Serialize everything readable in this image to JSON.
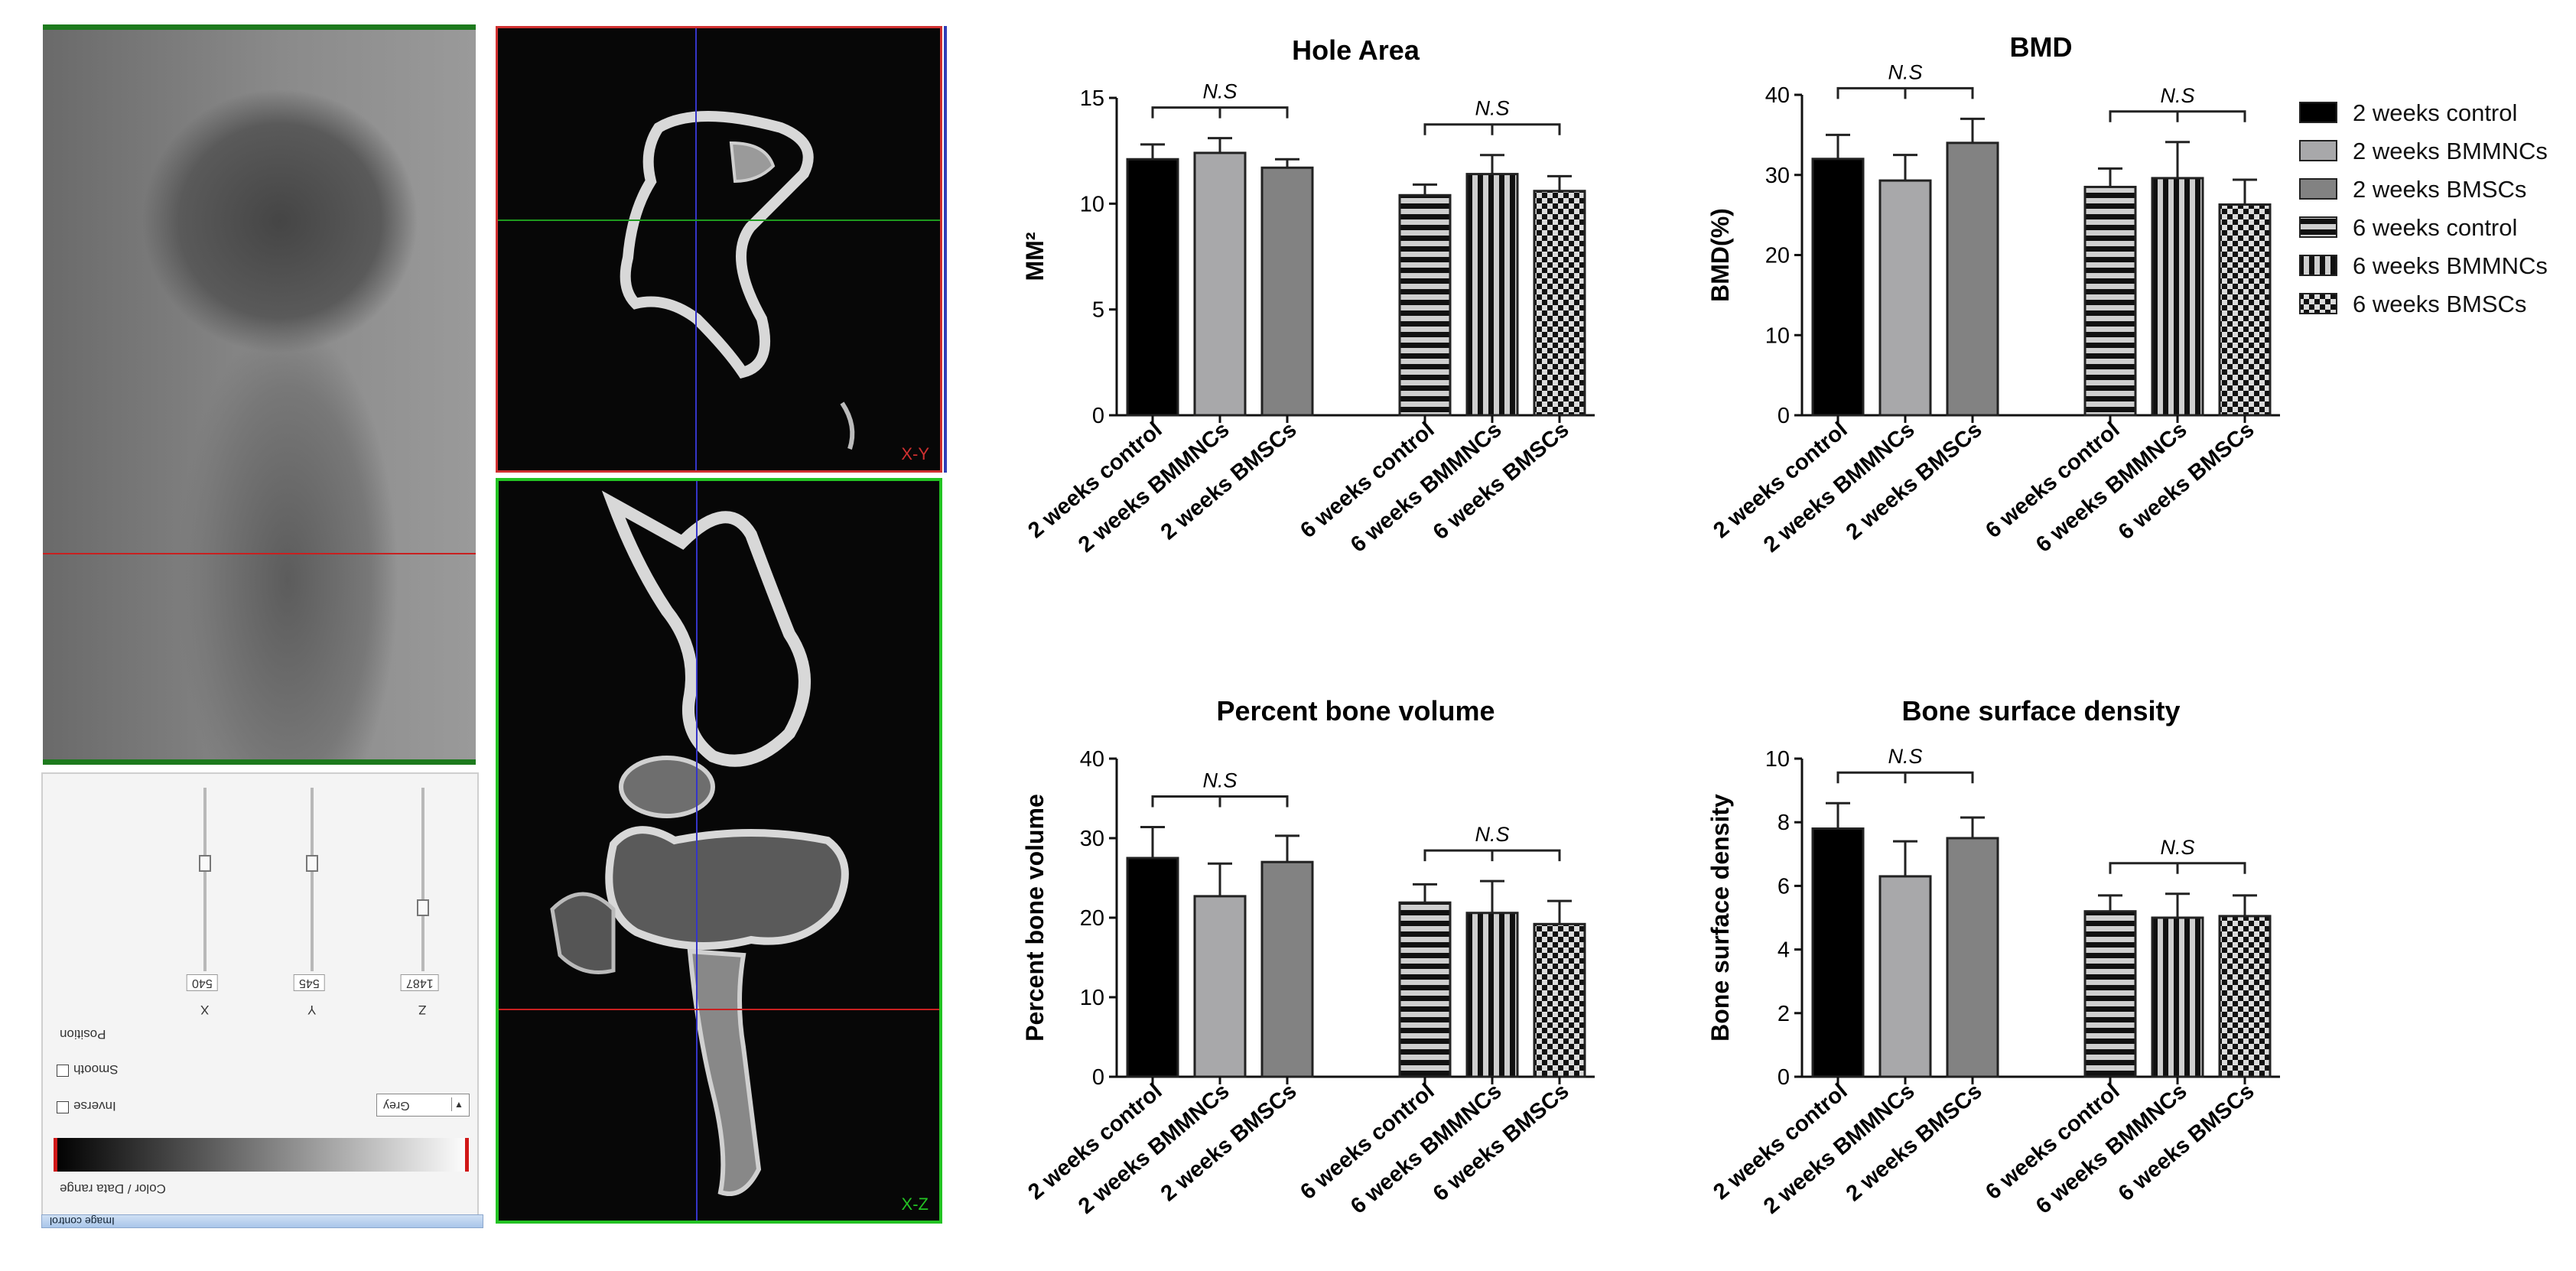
{
  "viewer": {
    "xy_label": "X-Y",
    "xz_label": "X-Z",
    "sliders": [
      {
        "axis": "X",
        "value": "540"
      },
      {
        "axis": "Y",
        "value": "545"
      },
      {
        "axis": "Z",
        "value": "1487"
      }
    ],
    "position_caption": "Position",
    "smooth_label": "Smooth",
    "inverse_label": "Inverse",
    "color_mode": "Grey",
    "color_range_caption": "Color / Data range",
    "image_control_caption": "Image control",
    "colors": {
      "xy_frame": "#d03030",
      "xz_frame": "#23c323",
      "crosshair_blue": "#3535c8",
      "crosshair_green": "#1e9a1e",
      "crosshair_red": "#c82020"
    }
  },
  "legend": [
    {
      "label": "2 weeks control",
      "pattern": "solid-black"
    },
    {
      "label": "2 weeks BMMNCs",
      "pattern": "solid-lightgray"
    },
    {
      "label": "2 weeks BMSCs",
      "pattern": "solid-gray"
    },
    {
      "label": "6 weeks control",
      "pattern": "horizontal-stripes"
    },
    {
      "label": "6 weeks BMMNCs",
      "pattern": "vertical-stripes"
    },
    {
      "label": "6 weeks BMSCs",
      "pattern": "checker"
    }
  ],
  "chart_data": [
    {
      "type": "bar",
      "title": "Hole Area",
      "ylabel": "MM²",
      "ylim": [
        0,
        15
      ],
      "yticks": [
        "0",
        "5",
        "10",
        "15"
      ],
      "categories": [
        "2 weeks control",
        "2 weeks BMMNCs",
        "2 weeks BMSCs",
        "6 weeks control",
        "6 weeks BMMNCs",
        "6 weeks BMSCs"
      ],
      "values": [
        12.1,
        12.4,
        11.7,
        10.4,
        11.4,
        10.6
      ],
      "errors": [
        0.7,
        0.7,
        0.4,
        0.5,
        0.9,
        0.7
      ],
      "annotations": [
        "N.S",
        "N.S"
      ]
    },
    {
      "type": "bar",
      "title": "BMD",
      "ylabel": "BMD(%)",
      "ylim": [
        0,
        40
      ],
      "yticks": [
        "0",
        "10",
        "20",
        "30",
        "40"
      ],
      "categories": [
        "2 weeks control",
        "2 weeks BMMNCs",
        "2 weeks BMSCs",
        "6 weeks control",
        "6 weeks BMMNCs",
        "6 weeks BMSCs"
      ],
      "values": [
        32.0,
        29.3,
        34.0,
        28.5,
        29.6,
        26.3
      ],
      "errors": [
        3.0,
        3.2,
        3.0,
        2.3,
        4.5,
        3.1
      ],
      "annotations": [
        "N.S",
        "N.S"
      ]
    },
    {
      "type": "bar",
      "title": "Percent bone volume",
      "ylabel": "Percent bone volume",
      "ylim": [
        0,
        40
      ],
      "yticks": [
        "0",
        "10",
        "20",
        "30",
        "40"
      ],
      "categories": [
        "2 weeks control",
        "2 weeks BMMNCs",
        "2 weeks BMSCs",
        "6 weeks control",
        "6 weeks BMMNCs",
        "6 weeks BMSCs"
      ],
      "values": [
        27.5,
        22.7,
        27.0,
        21.9,
        20.6,
        19.2
      ],
      "errors": [
        3.9,
        4.1,
        3.3,
        2.3,
        4.0,
        2.9
      ],
      "annotations": [
        "N.S",
        "N.S"
      ]
    },
    {
      "type": "bar",
      "title": "Bone surface density",
      "ylabel": "Bone surface density",
      "ylim": [
        0,
        10
      ],
      "yticks": [
        "0",
        "2",
        "4",
        "6",
        "8",
        "10"
      ],
      "categories": [
        "2 weeks control",
        "2 weeks BMMNCs",
        "2 weeks BMSCs",
        "6 weeks control",
        "6 weeks BMMNCs",
        "6 weeks BMSCs"
      ],
      "values": [
        7.8,
        6.3,
        7.5,
        5.2,
        5.0,
        5.05
      ],
      "errors": [
        0.8,
        1.1,
        0.65,
        0.5,
        0.75,
        0.65
      ],
      "annotations": [
        "N.S",
        "N.S"
      ]
    }
  ]
}
